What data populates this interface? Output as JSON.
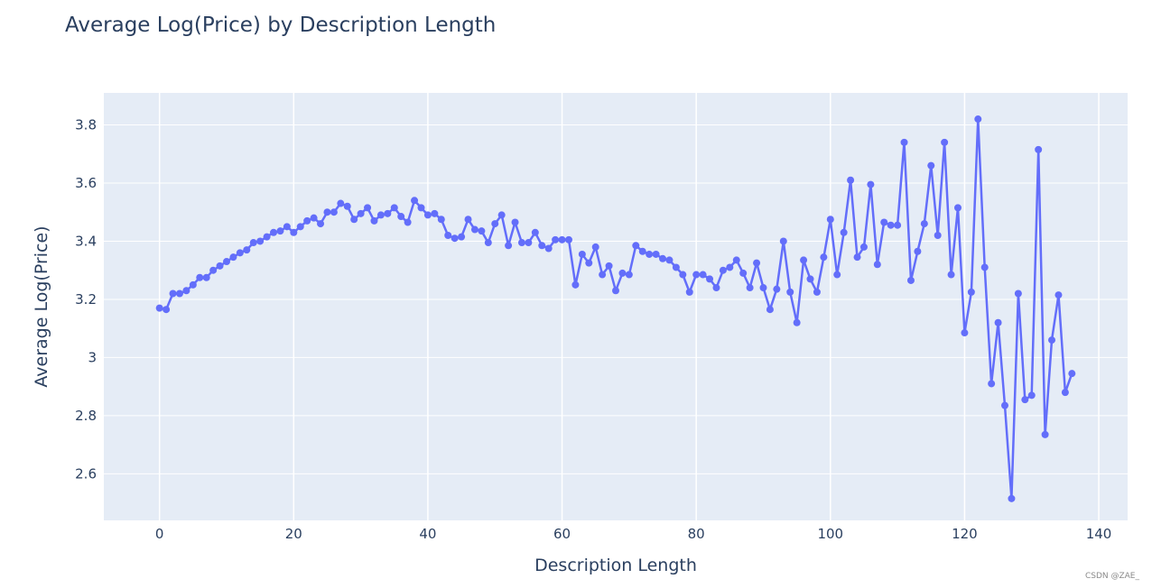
{
  "chart_data": {
    "type": "line",
    "title": "Average Log(Price) by Description Length",
    "xlabel": "Description Length",
    "ylabel": "Average Log(Price)",
    "xlim": [
      -8.3,
      144.3
    ],
    "ylim": [
      2.44,
      3.91
    ],
    "x_ticks": [
      0,
      20,
      40,
      60,
      80,
      100,
      120,
      140
    ],
    "y_ticks": [
      2.6,
      2.8,
      3,
      3.2,
      3.4,
      3.6,
      3.8
    ],
    "y_tick_labels": [
      "2.6",
      "2.8",
      "3",
      "3.2",
      "3.4",
      "3.6",
      "3.8"
    ],
    "grid": true,
    "mode": "lines+markers",
    "series": [
      {
        "color": "#636efa",
        "x": [
          0,
          1,
          2,
          3,
          4,
          5,
          6,
          7,
          8,
          9,
          10,
          11,
          12,
          13,
          14,
          15,
          16,
          17,
          18,
          19,
          20,
          21,
          22,
          23,
          24,
          25,
          26,
          27,
          28,
          29,
          30,
          31,
          32,
          33,
          34,
          35,
          36,
          37,
          38,
          39,
          40,
          41,
          42,
          43,
          44,
          45,
          46,
          47,
          48,
          49,
          50,
          51,
          52,
          53,
          54,
          55,
          56,
          57,
          58,
          59,
          60,
          61,
          62,
          63,
          64,
          65,
          66,
          67,
          68,
          69,
          70,
          71,
          72,
          73,
          74,
          75,
          76,
          77,
          78,
          79,
          80,
          81,
          82,
          83,
          84,
          85,
          86,
          87,
          88,
          89,
          90,
          91,
          92,
          93,
          94,
          95,
          96,
          97,
          98,
          99,
          100,
          101,
          102,
          103,
          104,
          105,
          106,
          107,
          108,
          109,
          110,
          111,
          112,
          113,
          114,
          115,
          116,
          117,
          118,
          119,
          120,
          121,
          122,
          123,
          124,
          125,
          126,
          127,
          128,
          129,
          130,
          131,
          132,
          133,
          134,
          135,
          136
        ],
        "y": [
          3.17,
          3.165,
          3.22,
          3.22,
          3.23,
          3.25,
          3.275,
          3.275,
          3.3,
          3.315,
          3.33,
          3.345,
          3.36,
          3.37,
          3.395,
          3.4,
          3.415,
          3.43,
          3.435,
          3.45,
          3.43,
          3.45,
          3.47,
          3.48,
          3.46,
          3.5,
          3.5,
          3.53,
          3.52,
          3.475,
          3.495,
          3.515,
          3.47,
          3.49,
          3.495,
          3.515,
          3.485,
          3.465,
          3.54,
          3.515,
          3.49,
          3.495,
          3.475,
          3.42,
          3.41,
          3.415,
          3.475,
          3.44,
          3.435,
          3.395,
          3.46,
          3.49,
          3.385,
          3.465,
          3.395,
          3.395,
          3.43,
          3.385,
          3.375,
          3.405,
          3.405,
          3.405,
          3.25,
          3.355,
          3.325,
          3.38,
          3.285,
          3.315,
          3.23,
          3.29,
          3.285,
          3.385,
          3.365,
          3.355,
          3.355,
          3.34,
          3.335,
          3.31,
          3.285,
          3.225,
          3.285,
          3.285,
          3.27,
          3.24,
          3.3,
          3.31,
          3.335,
          3.29,
          3.24,
          3.325,
          3.24,
          3.165,
          3.235,
          3.4,
          3.225,
          3.12,
          3.335,
          3.27,
          3.225,
          3.345,
          3.475,
          3.285,
          3.43,
          3.61,
          3.345,
          3.38,
          3.595,
          3.32,
          3.465,
          3.455,
          3.455,
          3.74,
          3.265,
          3.365,
          3.46,
          3.66,
          3.42,
          3.74,
          3.285,
          3.515,
          3.085,
          3.225,
          3.82,
          3.31,
          2.91,
          3.12,
          2.835,
          2.515,
          3.22,
          2.855,
          2.87,
          3.715,
          2.735,
          3.06,
          3.215,
          2.88,
          2.945
        ]
      }
    ]
  },
  "watermark": "CSDN @ZAE_"
}
